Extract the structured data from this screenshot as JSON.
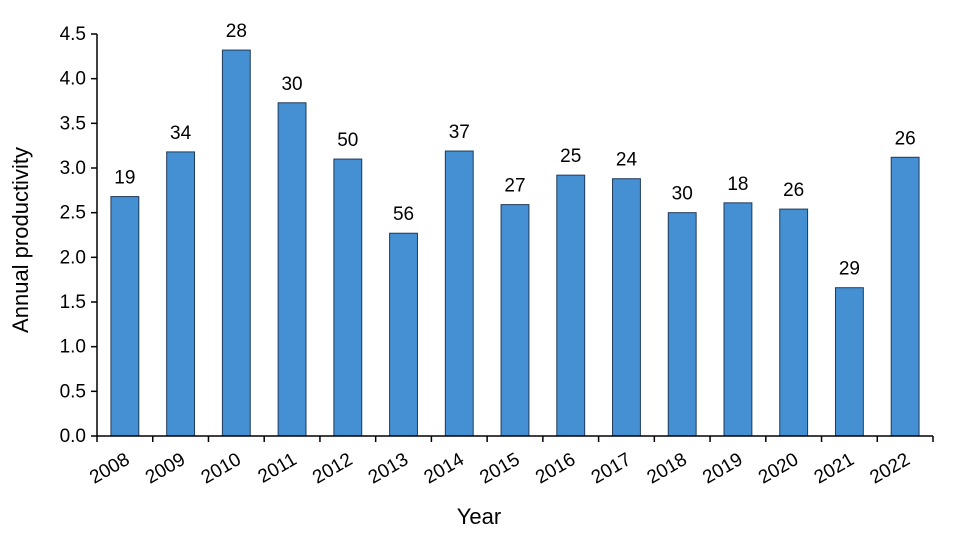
{
  "chart_data": {
    "type": "bar",
    "xlabel": "Year",
    "ylabel": "Annual productivity",
    "ylim": [
      0,
      4.5
    ],
    "yticks": [
      "0.0",
      "0.5",
      "1.0",
      "1.5",
      "2.0",
      "2.5",
      "3.0",
      "3.5",
      "4.0",
      "4.5"
    ],
    "categories": [
      "2008",
      "2009",
      "2010",
      "2011",
      "2012",
      "2013",
      "2014",
      "2015",
      "2016",
      "2017",
      "2018",
      "2019",
      "2020",
      "2021",
      "2022"
    ],
    "values": [
      2.68,
      3.18,
      4.32,
      3.73,
      3.1,
      2.27,
      3.19,
      2.59,
      2.92,
      2.88,
      2.5,
      2.61,
      2.54,
      1.66,
      3.12
    ],
    "data_labels": [
      "19",
      "34",
      "28",
      "30",
      "50",
      "56",
      "37",
      "27",
      "25",
      "24",
      "30",
      "18",
      "26",
      "29",
      "26"
    ],
    "bar_color": "#4590d2",
    "bar_edge_color": "#1f3a5c",
    "grid": false,
    "legend": "none"
  }
}
